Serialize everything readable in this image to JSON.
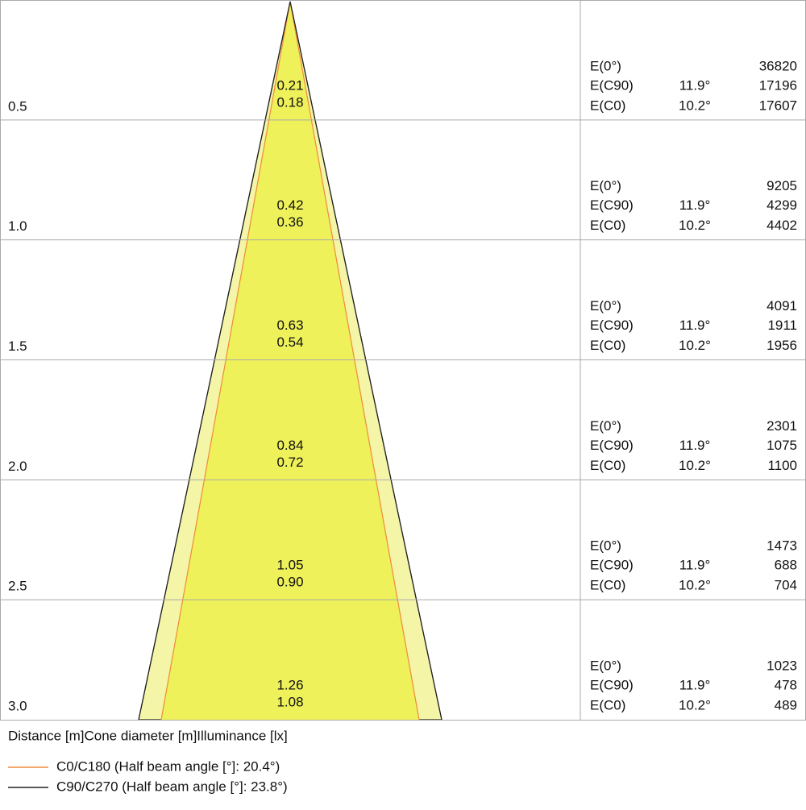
{
  "rows": [
    {
      "distance": "0.5",
      "diameter_c90": "0.21",
      "diameter_c0": "0.18",
      "e0": {
        "label": "E(0°)",
        "value": 36820
      },
      "ec90": {
        "label": "E(C90)",
        "angle": "11.9°",
        "value": 17196
      },
      "ec0": {
        "label": "E(C0)",
        "angle": "10.2°",
        "value": 17607
      }
    },
    {
      "distance": "1.0",
      "diameter_c90": "0.42",
      "diameter_c0": "0.36",
      "e0": {
        "label": "E(0°)",
        "value": 9205
      },
      "ec90": {
        "label": "E(C90)",
        "angle": "11.9°",
        "value": 4299
      },
      "ec0": {
        "label": "E(C0)",
        "angle": "10.2°",
        "value": 4402
      }
    },
    {
      "distance": "1.5",
      "diameter_c90": "0.63",
      "diameter_c0": "0.54",
      "e0": {
        "label": "E(0°)",
        "value": 4091
      },
      "ec90": {
        "label": "E(C90)",
        "angle": "11.9°",
        "value": 1911
      },
      "ec0": {
        "label": "E(C0)",
        "angle": "10.2°",
        "value": 1956
      }
    },
    {
      "distance": "2.0",
      "diameter_c90": "0.84",
      "diameter_c0": "0.72",
      "e0": {
        "label": "E(0°)",
        "value": 2301
      },
      "ec90": {
        "label": "E(C90)",
        "angle": "11.9°",
        "value": 1075
      },
      "ec0": {
        "label": "E(C0)",
        "angle": "10.2°",
        "value": 1100
      }
    },
    {
      "distance": "2.5",
      "diameter_c90": "1.05",
      "diameter_c0": "0.90",
      "e0": {
        "label": "E(0°)",
        "value": 1473
      },
      "ec90": {
        "label": "E(C90)",
        "angle": "11.9°",
        "value": 688
      },
      "ec0": {
        "label": "E(C0)",
        "angle": "10.2°",
        "value": 704
      }
    },
    {
      "distance": "3.0",
      "diameter_c90": "1.26",
      "diameter_c0": "1.08",
      "e0": {
        "label": "E(0°)",
        "value": 1023
      },
      "ec90": {
        "label": "E(C90)",
        "angle": "11.9°",
        "value": 478
      },
      "ec0": {
        "label": "E(C0)",
        "angle": "10.2°",
        "value": 489
      }
    }
  ],
  "header": "Distance [m]Cone diameter [m]Illuminance [lx]",
  "legend": [
    {
      "label": "C0/C180 (Half beam angle [°]: 20.4°)",
      "color": "#f08a3c"
    },
    {
      "label": "C90/C270 (Half beam angle [°]: 23.8°)",
      "color": "#222222"
    }
  ]
}
